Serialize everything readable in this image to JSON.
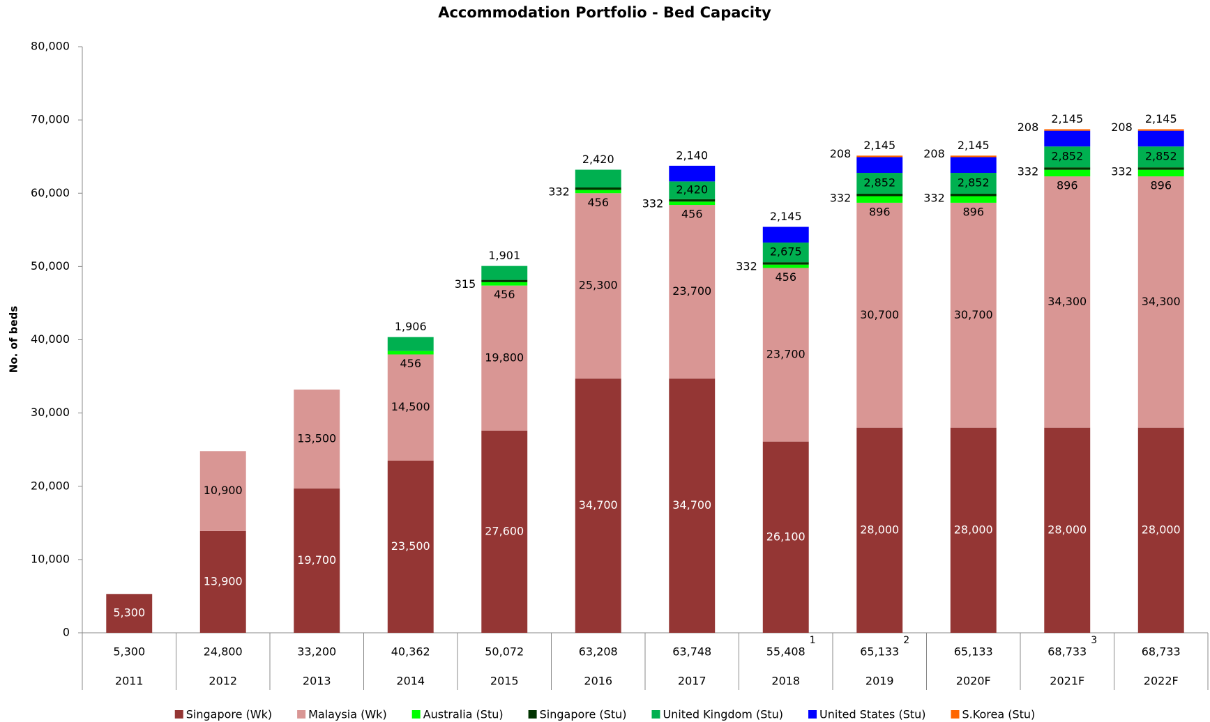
{
  "chart_data": {
    "type": "stacked_bar",
    "title": "Accommodation Portfolio - Bed Capacity",
    "ylabel": "No. of beds",
    "categories": [
      "2011",
      "2012",
      "2013",
      "2014",
      "2015",
      "2016",
      "2017",
      "2018",
      "2019",
      "2020F",
      "2021F",
      "2022F"
    ],
    "total_labels": [
      "5,300",
      "24,800",
      "33,200",
      "40,362",
      "50,072",
      "63,208",
      "63,748",
      "55,408",
      "65,133",
      "65,133",
      "68,733",
      "68,733"
    ],
    "total_notes": [
      null,
      null,
      null,
      null,
      null,
      null,
      null,
      "1",
      "2",
      null,
      "3",
      null
    ],
    "ylim": [
      0,
      80000
    ],
    "yticks": [
      0,
      {
        "value": 10000,
        "label": "10,000"
      },
      {
        "value": 20000,
        "label": "20,000"
      },
      {
        "value": 30000,
        "label": "30,000"
      },
      {
        "value": 40000,
        "label": "40,000"
      },
      {
        "value": 50000,
        "label": "50,000"
      },
      {
        "value": 60000,
        "label": "60,000"
      },
      {
        "value": 70000,
        "label": "70,000"
      },
      {
        "value": 80000,
        "label": "80,000"
      }
    ],
    "grid": false,
    "legend": "bottom",
    "series": [
      {
        "name": "Singapore (Wk)",
        "color": "#943634",
        "values": [
          5300,
          13900,
          19700,
          23500,
          27600,
          34700,
          34700,
          26100,
          28000,
          28000,
          28000,
          28000
        ],
        "value_labels": [
          "5,300",
          "13,900",
          "19,700",
          "23,500",
          "27,600",
          "34,700",
          "34,700",
          "26,100",
          "28,000",
          "28,000",
          "28,000",
          "28,000"
        ]
      },
      {
        "name": "Malaysia (Wk)",
        "color": "#d99694",
        "values": [
          null,
          10900,
          13500,
          14500,
          19800,
          25300,
          23700,
          23700,
          30700,
          30700,
          34300,
          34300
        ],
        "value_labels": [
          null,
          "10,900",
          "13,500",
          "14,500",
          "19,800",
          "25,300",
          "23,700",
          "23,700",
          "30,700",
          "30,700",
          "34,300",
          "34,300"
        ]
      },
      {
        "name": "Australia (Stu)",
        "color": "#00ff00",
        "values": [
          null,
          null,
          null,
          456,
          456,
          456,
          456,
          456,
          896,
          896,
          896,
          896
        ]
      },
      {
        "name": "Singapore (Stu)",
        "color": "#003300",
        "values": [
          null,
          null,
          null,
          null,
          315,
          332,
          332,
          332,
          332,
          332,
          332,
          332
        ]
      },
      {
        "name": "United Kingdom (Stu)",
        "color": "#00b050",
        "values": [
          null,
          null,
          null,
          1906,
          1901,
          2420,
          2420,
          2675,
          2852,
          2852,
          2852,
          2852
        ],
        "value_labels": [
          null,
          null,
          null,
          "1,906",
          "1,901",
          "2,420",
          "2,420",
          "2,675",
          "2,852",
          "2,852",
          "2,852",
          "2,852"
        ]
      },
      {
        "name": "United States (Stu)",
        "color": "#0000ff",
        "values": [
          null,
          null,
          null,
          null,
          null,
          null,
          2140,
          2145,
          2145,
          2145,
          2145,
          2145
        ],
        "value_labels": [
          null,
          null,
          null,
          null,
          null,
          null,
          "2,140",
          "2,145",
          "2,145",
          "2,145",
          "2,145",
          "2,145"
        ]
      },
      {
        "name": "S.Korea (Stu)",
        "color": "#ff6600",
        "values": [
          null,
          null,
          null,
          null,
          null,
          null,
          null,
          null,
          208,
          208,
          208,
          208
        ]
      }
    ]
  }
}
